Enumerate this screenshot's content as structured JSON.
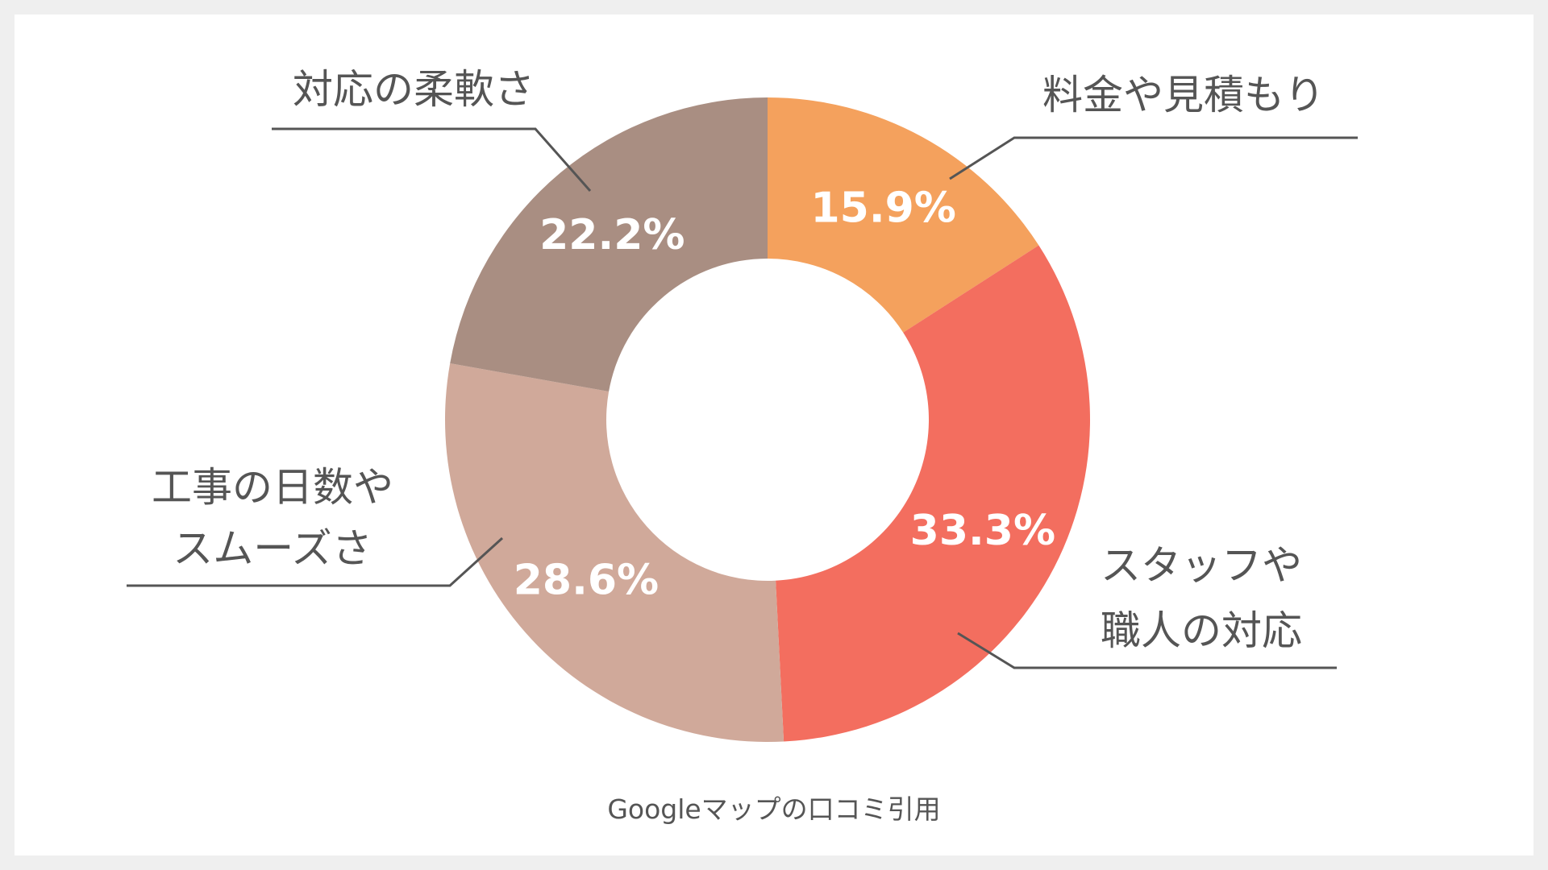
{
  "chart_data": {
    "type": "pie",
    "donut": true,
    "categories": [
      "料金や見積もり",
      "スタッフや職人の対応",
      "工事の日数やスムーズさ",
      "対応の柔軟さ"
    ],
    "category_lines": [
      [
        "料金や見積もり"
      ],
      [
        "スタッフや",
        "職人の対応"
      ],
      [
        "工事の日数や",
        "スムーズさ"
      ],
      [
        "対応の柔軟さ"
      ]
    ],
    "values": [
      15.9,
      33.3,
      28.6,
      22.2
    ],
    "value_labels": [
      "15.9%",
      "33.3%",
      "28.6%",
      "22.2%"
    ],
    "colors": [
      "#f4a15d",
      "#f36e5f",
      "#d0a99a",
      "#a98e82"
    ],
    "start": "top, clockwise"
  },
  "source_note": "Googleマップの口コミ引用"
}
